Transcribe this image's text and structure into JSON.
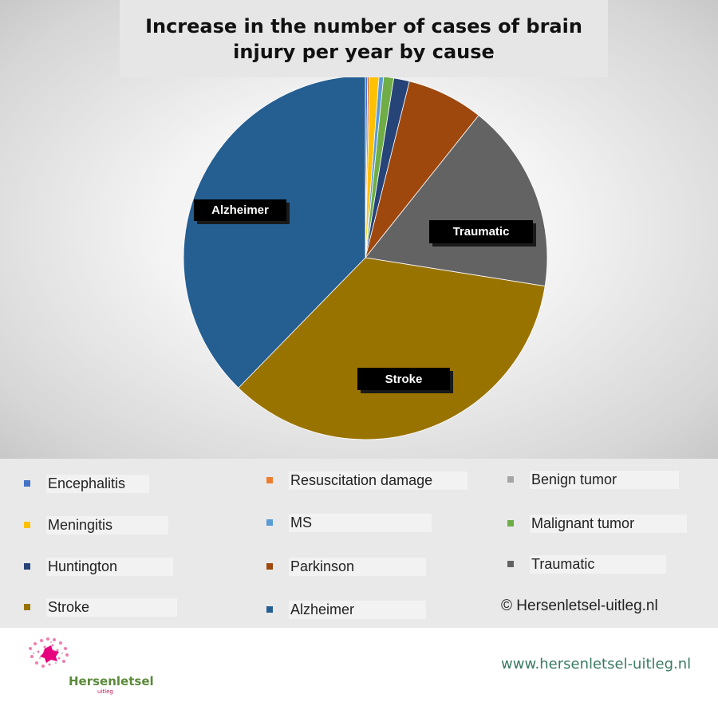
{
  "chart_data": {
    "type": "pie",
    "title": "Increase in the number of cases of brain injury per year by cause",
    "legend_position": "bottom",
    "slices": [
      {
        "name": "Encephalitis",
        "value": 0.2,
        "color": "#4472c4"
      },
      {
        "name": "Resuscitation damage",
        "value": 0.2,
        "color": "#ed7d31"
      },
      {
        "name": "Meningitis",
        "value": 0.8,
        "color": "#ffc000"
      },
      {
        "name": "MS",
        "value": 0.4,
        "color": "#5b9bd5"
      },
      {
        "name": "Malignant tumor",
        "value": 0.9,
        "color": "#70ad47"
      },
      {
        "name": "Huntington",
        "value": 1.4,
        "color": "#264478"
      },
      {
        "name": "Parkinson",
        "value": 6.8,
        "color": "#9e480e"
      },
      {
        "name": "Benign tumor",
        "value": 0.0,
        "color": "#a5a5a5"
      },
      {
        "name": "Traumatic",
        "value": 16.8,
        "color": "#636363"
      },
      {
        "name": "Stroke",
        "value": 34.8,
        "color": "#997300"
      },
      {
        "name": "Alzheimer",
        "value": 37.7,
        "color": "#255e91"
      }
    ],
    "slice_labels": [
      "Alzheimer",
      "Traumatic",
      "Stroke"
    ]
  },
  "legend": [
    [
      "Encephalitis",
      "Resuscitation damage",
      "Benign tumor"
    ],
    [
      "Meningitis",
      "MS",
      "Malignant tumor"
    ],
    [
      "Huntington",
      "Parkinson",
      "Traumatic"
    ],
    [
      "Stroke",
      "Alzheimer"
    ]
  ],
  "copyright": "© Hersenletsel-uitleg.nl",
  "footer": {
    "logo_text": "Hersenletsel",
    "logo_subtext": "uitleg",
    "website": "www.hersenletsel-uitleg.nl"
  }
}
